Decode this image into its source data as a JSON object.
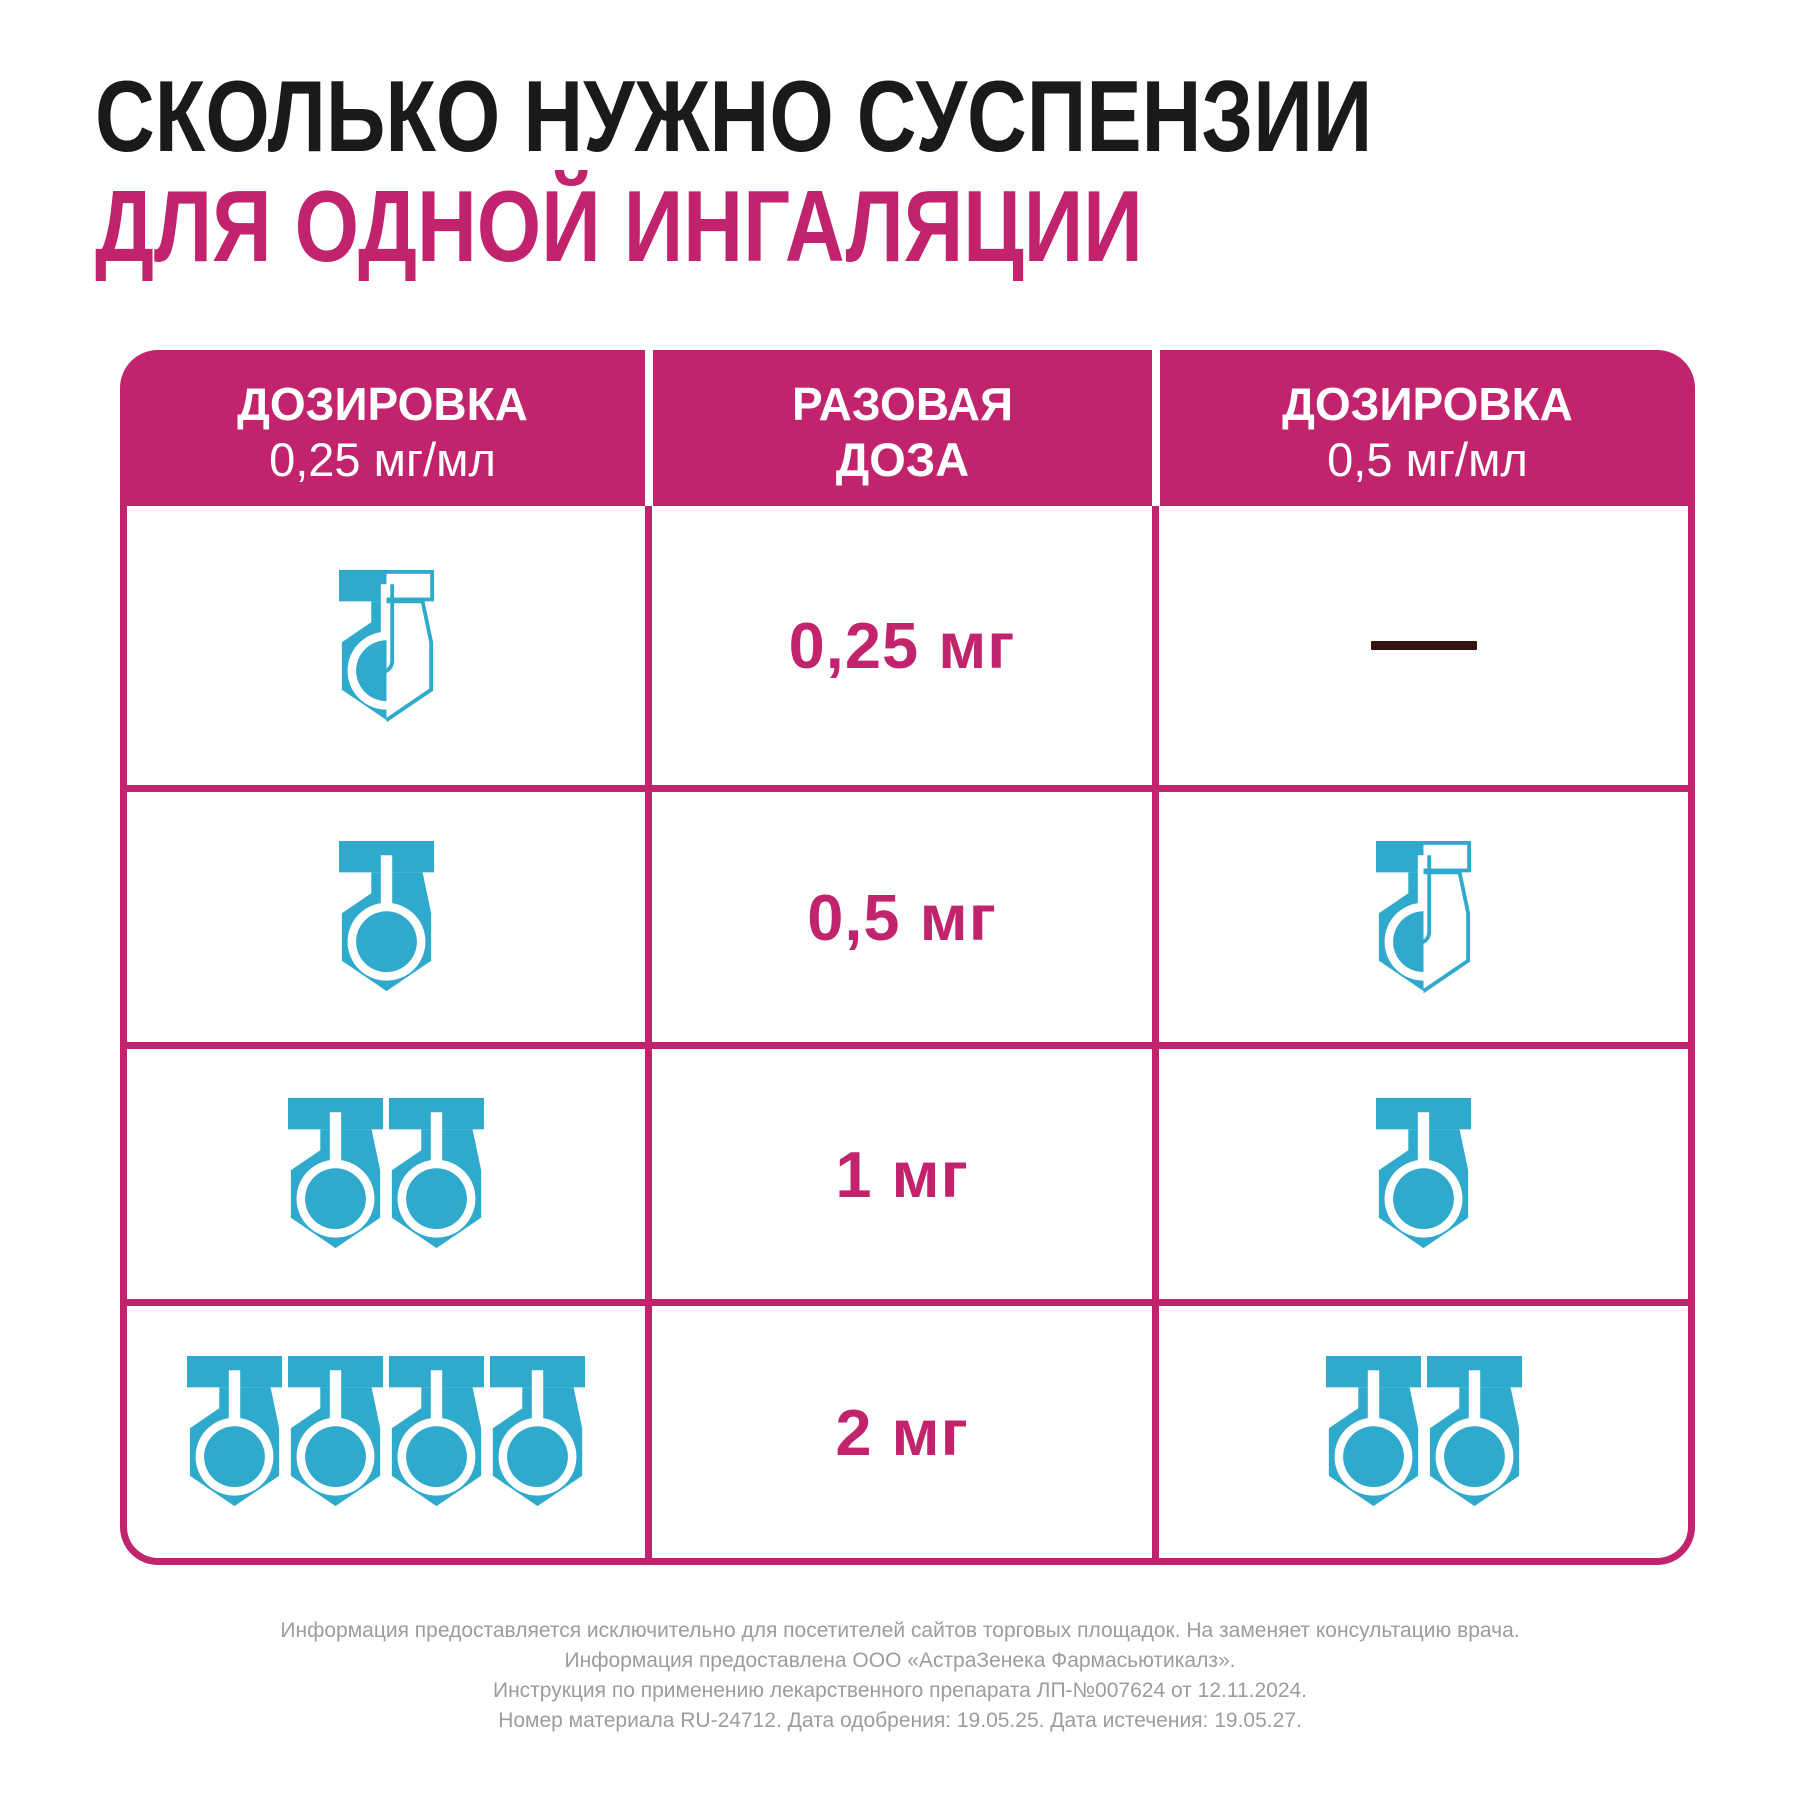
{
  "title": {
    "line1": "СКОЛЬКО НУЖНО СУСПЕНЗИИ",
    "line2": "ДЛЯ ОДНОЙ ИНГАЛЯЦИИ"
  },
  "colors": {
    "magenta": "#c2236d",
    "teal": "#2fa9cc",
    "dash": "#321512",
    "title_black": "#1a1a1a",
    "footer_gray": "#9c9c9c"
  },
  "table": {
    "header": {
      "columns": [
        {
          "line1": "ДОЗИРОВКА",
          "line2": "0,25 мг/мл"
        },
        {
          "line1": "РАЗОВАЯ",
          "line2": "ДОЗА"
        },
        {
          "line1": "ДОЗИРОВКА",
          "line2": "0,5 мг/мл"
        }
      ]
    },
    "rows": [
      {
        "left_icons": {
          "type": "ampoule-half",
          "count": 1
        },
        "dose": "0,25 мг",
        "right_icons": {
          "type": "dash",
          "count": 1
        }
      },
      {
        "left_icons": {
          "type": "ampoule-full",
          "count": 1
        },
        "dose": "0,5 мг",
        "right_icons": {
          "type": "ampoule-half",
          "count": 1
        }
      },
      {
        "left_icons": {
          "type": "ampoule-full",
          "count": 2
        },
        "dose": "1 мг",
        "right_icons": {
          "type": "ampoule-full",
          "count": 1
        }
      },
      {
        "left_icons": {
          "type": "ampoule-full",
          "count": 4
        },
        "dose": "2 мг",
        "right_icons": {
          "type": "ampoule-full",
          "count": 2
        }
      }
    ]
  },
  "chart_data": {
    "type": "table",
    "title": "СКОЛЬКО НУЖНО СУСПЕНЗИИ ДЛЯ ОДНОЙ ИНГАЛЯЦИИ",
    "columns": [
      "ДОЗИРОВКА 0,25 мг/мл (ампул)",
      "РАЗОВАЯ ДОЗА",
      "ДОЗИРОВКА 0,5 мг/мл (ампул)"
    ],
    "rows": [
      [
        0.5,
        "0,25 мг",
        null
      ],
      [
        1,
        "0,5 мг",
        0.5
      ],
      [
        2,
        "1 мг",
        1
      ],
      [
        4,
        "2 мг",
        2
      ]
    ]
  },
  "footer": {
    "lines": [
      "Информация предоставляется исключительно для посетителей сайтов торговых площадок. На заменяет консультацию врача.",
      "Информация предоставлена ООО «АстраЗенека Фармасьютикалз».",
      "Инструкция по применению лекарственного препарата ЛП-№007624 от 12.11.2024.",
      "Номер материала RU-24712. Дата одобрения: 19.05.25. Дата истечения: 19.05.27."
    ]
  }
}
